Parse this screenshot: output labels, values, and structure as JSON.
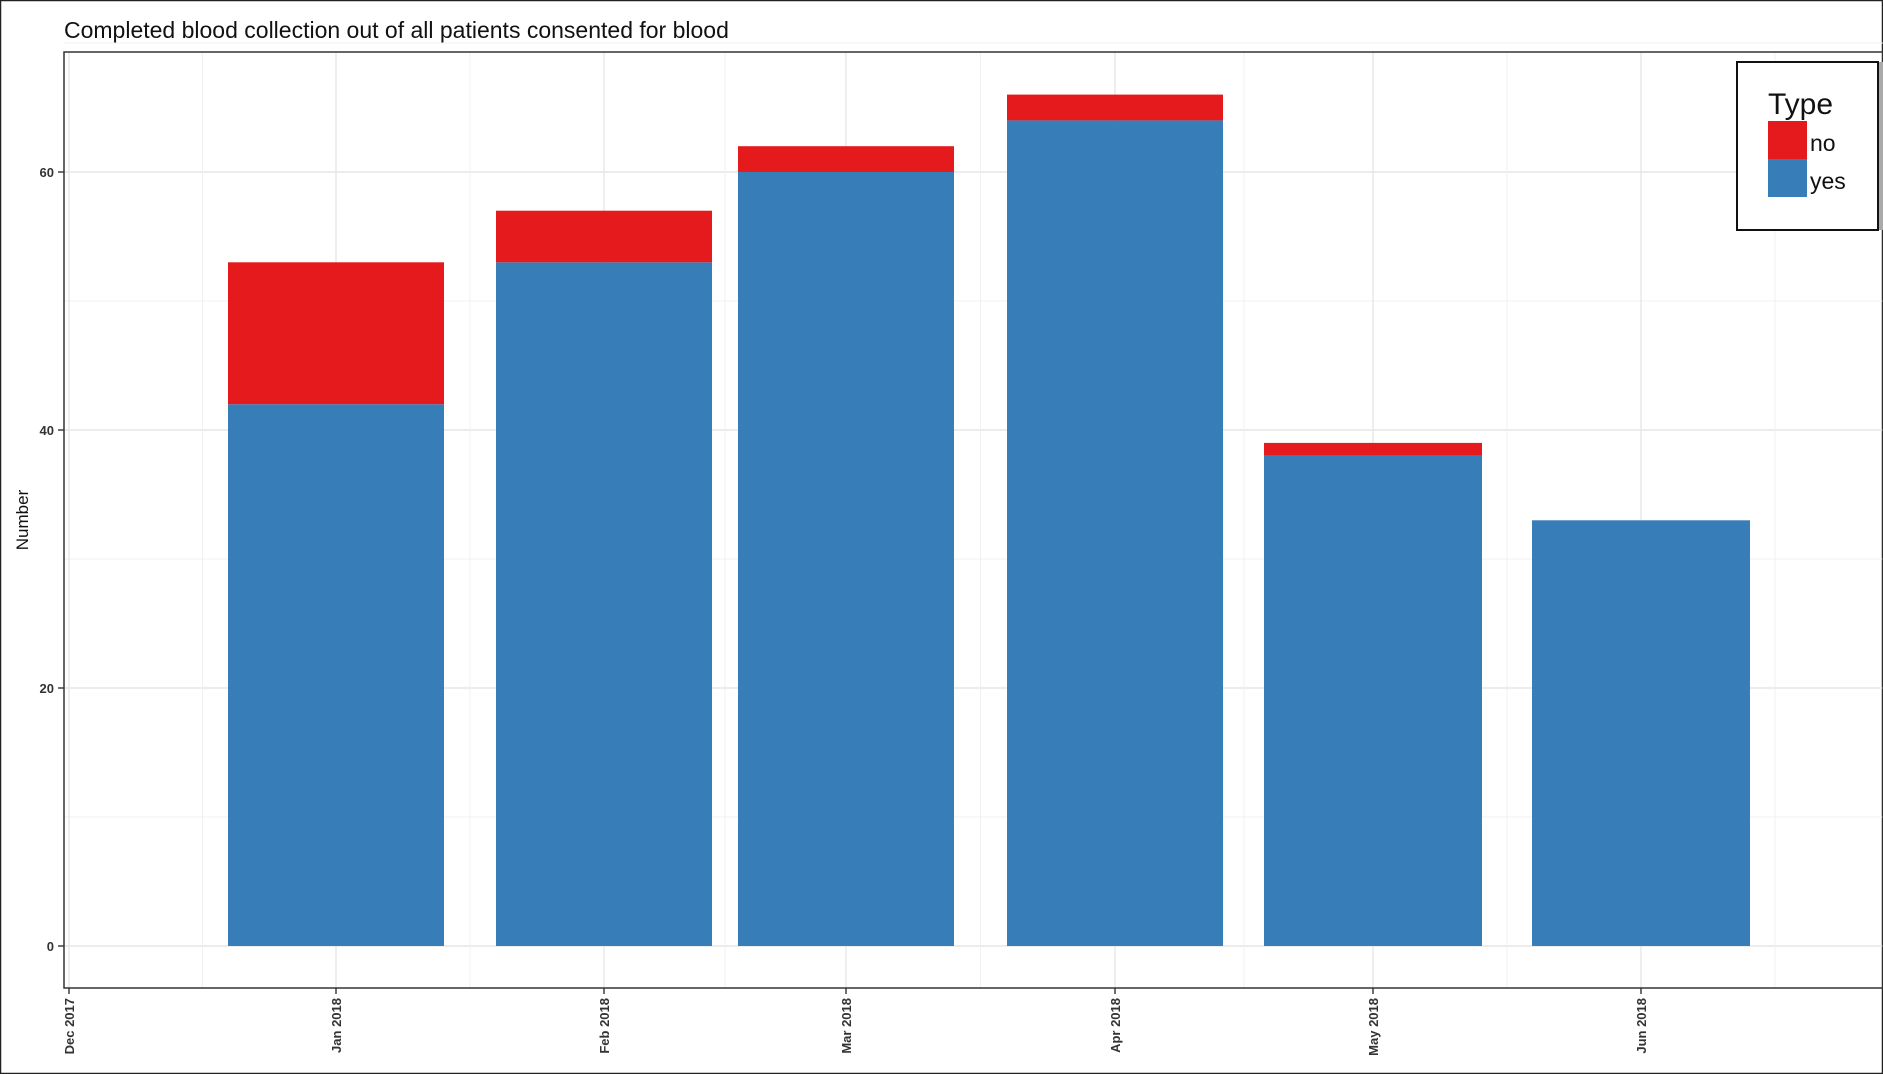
{
  "chart_data": {
    "type": "bar",
    "stacked": true,
    "title": "Completed blood collection out of all patients consented for blood",
    "xlabel": "",
    "ylabel": "Number",
    "x_tick_labels": [
      "Dec 2017",
      "Jan 2018",
      "Feb 2018",
      "Mar 2018",
      "Apr 2018",
      "May 2018",
      "Jun 2018"
    ],
    "categories": [
      "Jan 2018",
      "Feb 2018",
      "Mar 2018",
      "Apr 2018",
      "May 2018",
      "Jun 2018"
    ],
    "series": [
      {
        "name": "yes",
        "color": "#377EB8",
        "values": [
          42,
          53,
          60,
          64,
          38,
          33
        ]
      },
      {
        "name": "no",
        "color": "#E41A1C",
        "values": [
          11,
          4,
          2,
          2,
          1,
          0
        ]
      }
    ],
    "y_ticks": [
      0,
      20,
      40,
      60
    ],
    "ylim": [
      0,
      69
    ],
    "grid": true,
    "legend": {
      "title": "Type",
      "placement": "top-right",
      "items": [
        {
          "label": "no",
          "color": "#E41A1C"
        },
        {
          "label": "yes",
          "color": "#377EB8"
        }
      ]
    }
  }
}
